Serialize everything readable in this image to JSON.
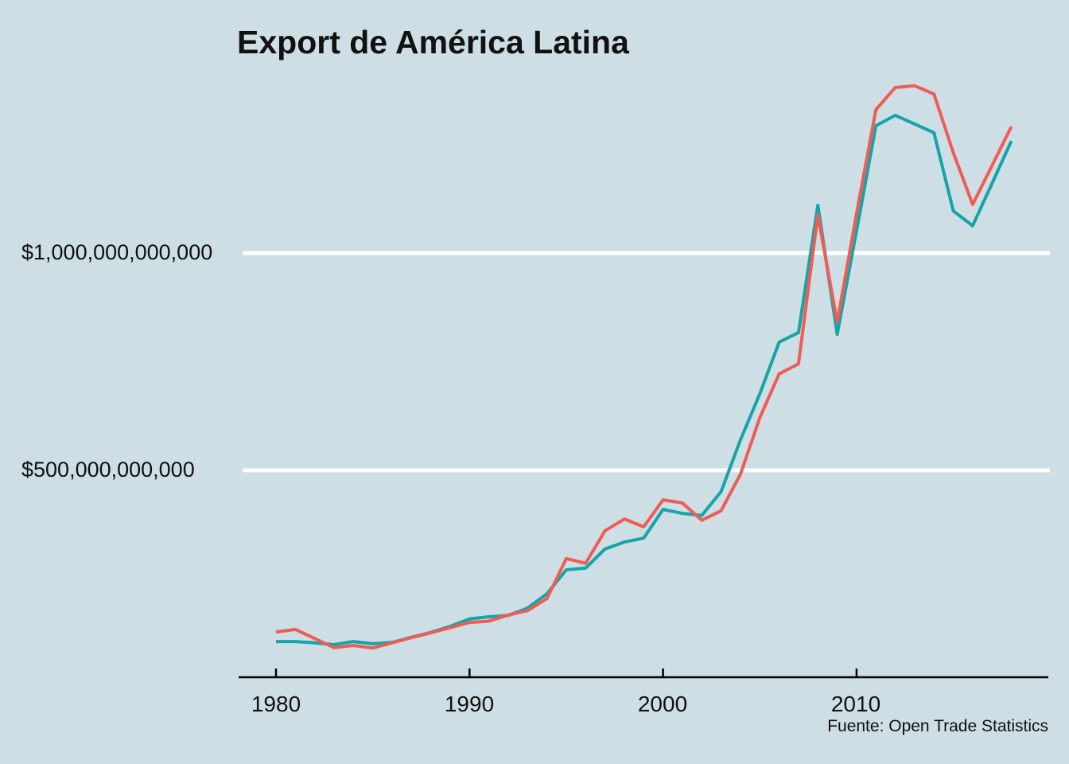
{
  "chart": {
    "title": "Export de América Latina",
    "caption": "Fuente: Open Trade Statistics",
    "colors": {
      "background": "#CDDEE5",
      "red_series": "#F05C55",
      "teal_series": "#15A4A8",
      "gridline": "#FFFFFF",
      "axis": "#000000",
      "text": "#111111"
    },
    "y_axis": {
      "tick_labels": [
        "$1,000,000,000,000",
        "$500,000,000,000"
      ],
      "tick_values_usd_billion": [
        1000,
        500
      ]
    },
    "x_axis": {
      "tick_labels": [
        "1980",
        "1990",
        "2000",
        "2010"
      ],
      "tick_values": [
        1980,
        1990,
        2000,
        2010
      ]
    }
  },
  "chart_data": {
    "type": "line",
    "title": "Export de América Latina",
    "caption": "Fuente: Open Trade Statistics",
    "xlabel": "",
    "ylabel": "",
    "x": [
      1980,
      1981,
      1982,
      1983,
      1984,
      1985,
      1986,
      1987,
      1988,
      1989,
      1990,
      1991,
      1992,
      1993,
      1994,
      1995,
      1996,
      1997,
      1998,
      1999,
      2000,
      2001,
      2002,
      2003,
      2004,
      2005,
      2006,
      2007,
      2008,
      2009,
      2010,
      2011,
      2012,
      2013,
      2014,
      2015,
      2016,
      2017,
      2018
    ],
    "series": [
      {
        "name": "teal",
        "color": "#15A4A8",
        "values_usd_billion": [
          106,
          106,
          103,
          99,
          106,
          101,
          104,
          116,
          127,
          141,
          158,
          163,
          166,
          183,
          216,
          271,
          275,
          319,
          335,
          344,
          410,
          401,
          396,
          451,
          570,
          676,
          795,
          817,
          1110,
          813,
          1051,
          1293,
          1317,
          1297,
          1277,
          1097,
          1063,
          1160,
          1258
        ]
      },
      {
        "name": "red",
        "color": "#F05C55",
        "values_usd_billion": [
          128,
          134,
          113,
          92,
          97,
          91,
          103,
          115,
          126,
          138,
          150,
          153,
          167,
          177,
          205,
          297,
          286,
          361,
          388,
          370,
          432,
          425,
          385,
          407,
          491,
          621,
          722,
          745,
          1088,
          841,
          1091,
          1330,
          1381,
          1385,
          1366,
          1231,
          1112,
          1201,
          1291
        ]
      }
    ],
    "xlim": [
      1978.1,
      2019.9
    ],
    "ylim_usd_billion": [
      24,
      1582
    ],
    "gridlines_usd_billion": [
      500,
      1000
    ],
    "grid": "horizontal-only",
    "legend": "none"
  }
}
